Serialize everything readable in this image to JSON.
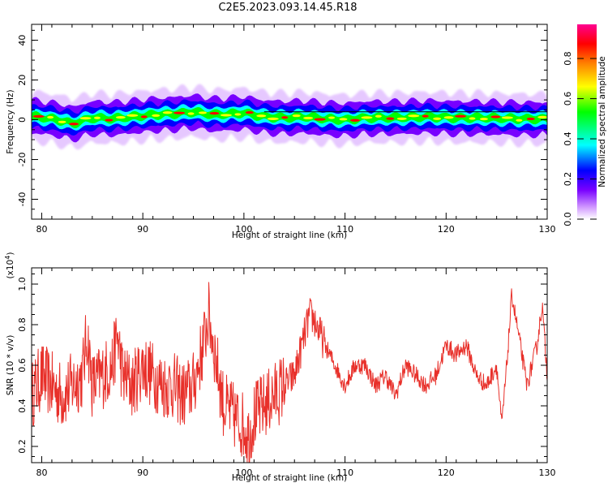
{
  "title": "C2E5.2023.093.14.45.R18",
  "chart_data": [
    {
      "type": "heatmap",
      "xlabel": "Height of straight line (km)",
      "ylabel": "Frequency (Hz)",
      "xlim": [
        79,
        130
      ],
      "ylim": [
        -50,
        48
      ],
      "xticks": [
        "80",
        "90",
        "100",
        "110",
        "120",
        "130"
      ],
      "yticks": [
        "40",
        "20",
        "0",
        "-20",
        "-40"
      ],
      "ridge": {
        "x": [
          79.5,
          81,
          82.5,
          83,
          85,
          87,
          89,
          91,
          93,
          95,
          97,
          99,
          100,
          102,
          104,
          106,
          108,
          110,
          112,
          115,
          118,
          121,
          124,
          127,
          130
        ],
        "freq": [
          1.5,
          0.5,
          -1,
          -2,
          1,
          0.5,
          1.5,
          2.5,
          3,
          4,
          2.5,
          3,
          3.5,
          1.5,
          1,
          1.5,
          0.5,
          0,
          1,
          1,
          1.5,
          1,
          1,
          0.5,
          0.5
        ]
      },
      "colorbar": {
        "label": "Normalized spectral amplitude",
        "ticks": [
          "0.0",
          "0.2",
          "0.4",
          "0.6",
          "0.8"
        ],
        "range": [
          0,
          0.97
        ],
        "colors": [
          "#ffffff",
          "#d29bff",
          "#7800ff",
          "#0000ff",
          "#00ffff",
          "#00ff00",
          "#ffff00",
          "#ff8000",
          "#ff0000",
          "#ff0090"
        ]
      }
    },
    {
      "type": "line",
      "xlabel": "Height of straight line (km)",
      "ylabel": "SNR (10 * v/v)",
      "yscale_label": "(x10",
      "yscale_exp": "4",
      "yscale_close": ")",
      "xlim": [
        79,
        130
      ],
      "ylim": [
        0.12,
        1.08
      ],
      "xticks": [
        "80",
        "90",
        "100",
        "110",
        "120",
        "130"
      ],
      "yticks": [
        "0.2",
        "0.4",
        "0.6",
        "0.8",
        "1.0"
      ],
      "series": [
        {
          "color": "#e8302a",
          "x": [
            79,
            80,
            81,
            82,
            83,
            84,
            84.5,
            85,
            86,
            87,
            87.5,
            88,
            89,
            90,
            91,
            92,
            93,
            94,
            95,
            96,
            96.5,
            97,
            98,
            99,
            100,
            100.5,
            101,
            102,
            103,
            104,
            105,
            106,
            106.5,
            107,
            108,
            109,
            110,
            111,
            112,
            113,
            114,
            115,
            116,
            117,
            118,
            119,
            120,
            121,
            122,
            123,
            124,
            125,
            125.5,
            126,
            126.5,
            127,
            128,
            129,
            129.5,
            130
          ],
          "y": [
            0.45,
            0.55,
            0.5,
            0.45,
            0.5,
            0.55,
            0.75,
            0.5,
            0.55,
            0.6,
            0.75,
            0.55,
            0.5,
            0.6,
            0.55,
            0.5,
            0.5,
            0.45,
            0.5,
            0.7,
            0.85,
            0.7,
            0.4,
            0.35,
            0.3,
            0.25,
            0.35,
            0.4,
            0.45,
            0.5,
            0.55,
            0.75,
            0.85,
            0.82,
            0.7,
            0.6,
            0.5,
            0.6,
            0.6,
            0.5,
            0.55,
            0.45,
            0.6,
            0.55,
            0.5,
            0.55,
            0.7,
            0.65,
            0.7,
            0.55,
            0.5,
            0.6,
            0.3,
            0.6,
            0.95,
            0.8,
            0.5,
            0.7,
            0.9,
            0.55
          ]
        }
      ]
    }
  ]
}
